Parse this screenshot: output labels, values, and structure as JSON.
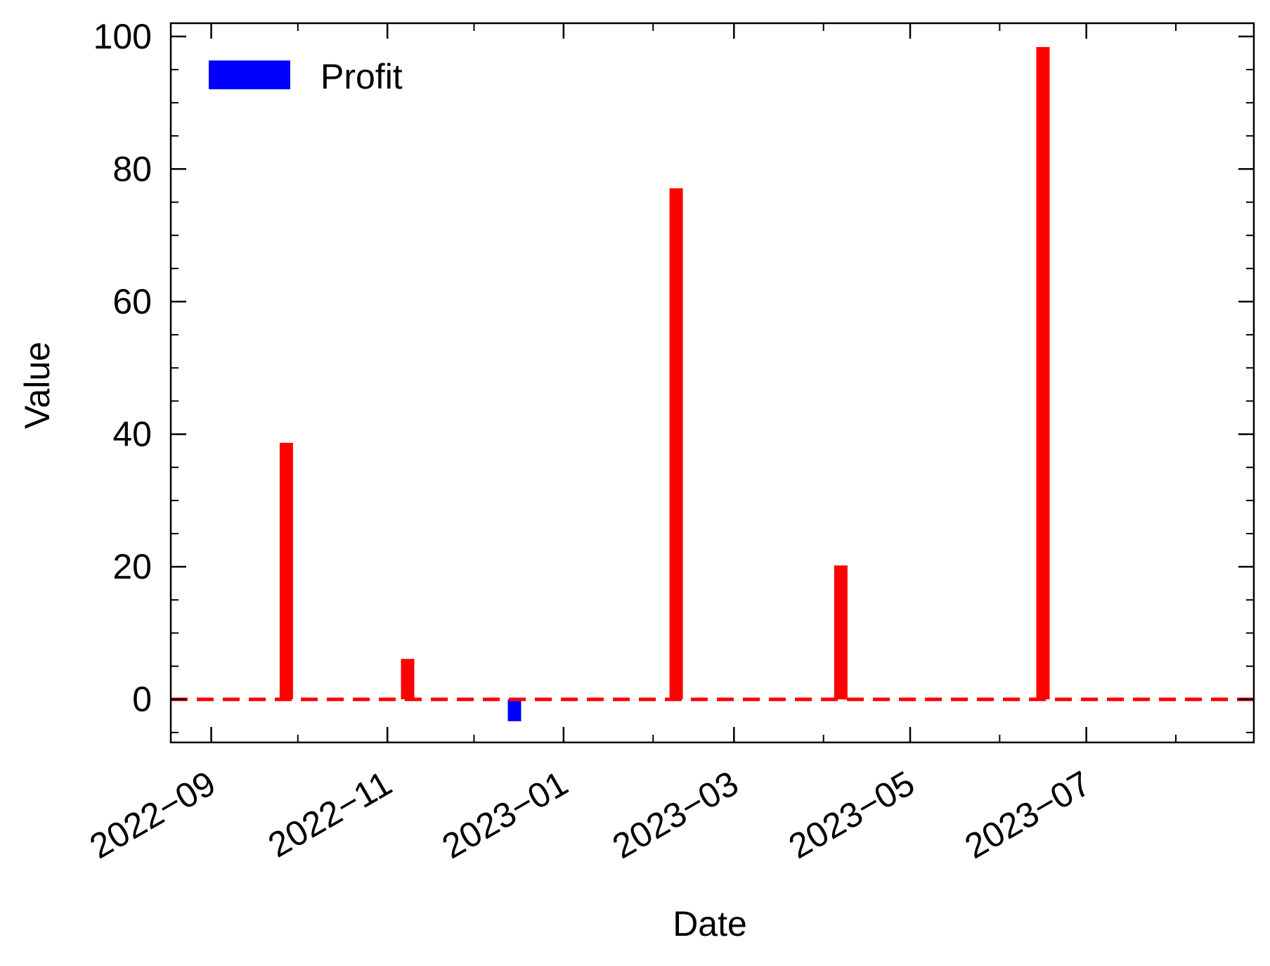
{
  "chart_data": {
    "type": "bar",
    "title": "",
    "xlabel": "Date",
    "ylabel": "Value",
    "x_axis": {
      "scale": "date",
      "range": [
        "2022-08-18",
        "2023-08-28"
      ],
      "tick_labels": [
        "2022−09",
        "2022−11",
        "2023−01",
        "2023−03",
        "2023−05",
        "2023−07"
      ],
      "tick_dates": [
        "2022-09-01",
        "2022-11-01",
        "2023-01-01",
        "2023-03-01",
        "2023-05-01",
        "2023-07-01"
      ]
    },
    "y_axis": {
      "range": [
        -6.5,
        102
      ],
      "tick_labels": [
        "0",
        "20",
        "40",
        "60",
        "80",
        "100"
      ],
      "ticks": [
        0,
        20,
        40,
        60,
        80,
        100
      ]
    },
    "series": [
      {
        "name": "Profit",
        "color_positive": "#ff0000",
        "color_negative": "#0000ff",
        "points": [
          {
            "date": "2022-09-27",
            "value": 38.7
          },
          {
            "date": "2022-11-08",
            "value": 6.1
          },
          {
            "date": "2022-12-15",
            "value": -3.3
          },
          {
            "date": "2023-02-09",
            "value": 77.1
          },
          {
            "date": "2023-04-07",
            "value": 20.2
          },
          {
            "date": "2023-06-16",
            "value": 98.4
          }
        ]
      }
    ],
    "reference_line": {
      "value": 0,
      "color": "#ff0000",
      "style": "dashed"
    },
    "legend": {
      "entries": [
        {
          "label": "Profit",
          "color": "#0000ff"
        }
      ],
      "placement": "top-left"
    },
    "grid": false
  }
}
